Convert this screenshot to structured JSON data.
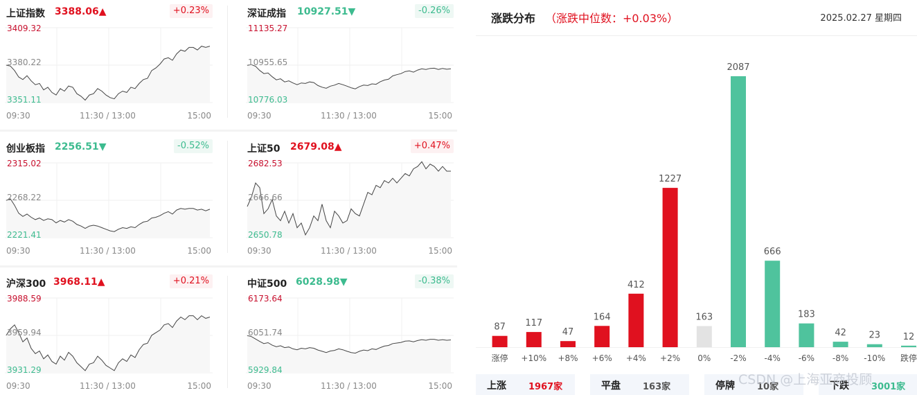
{
  "panels": [
    {
      "name": "上证指数",
      "value": "3388.06",
      "direction": "up",
      "arrow": "▲",
      "change": "+0.23%",
      "high": "3409.32",
      "mid": "3380.22",
      "low": "3351.11",
      "time_start": "09:30",
      "time_mid": "11:30 / 13:00",
      "time_end": "15:00",
      "series": [
        3380.2,
        3379.5,
        3376,
        3371,
        3369,
        3372,
        3368,
        3365,
        3366,
        3361,
        3363,
        3359,
        3357,
        3362,
        3360,
        3364,
        3363,
        3358,
        3356,
        3353,
        3357,
        3358,
        3362,
        3360,
        3357,
        3355,
        3354,
        3358,
        3360,
        3359,
        3363,
        3362,
        3366,
        3369,
        3370,
        3376,
        3378,
        3381,
        3385,
        3386,
        3384,
        3389,
        3392,
        3391,
        3394,
        3394,
        3392,
        3395,
        3394,
        3395
      ]
    },
    {
      "name": "深证成指",
      "value": "10927.51",
      "direction": "down",
      "arrow": "▼",
      "change": "-0.26%",
      "high": "11135.27",
      "mid": "10955.65",
      "low": "10776.03",
      "time_start": "09:30",
      "time_mid": "11:30 / 13:00",
      "time_end": "15:00",
      "series": [
        10955,
        10958,
        10950,
        10930,
        10915,
        10918,
        10900,
        10885,
        10890,
        10875,
        10880,
        10870,
        10862,
        10870,
        10868,
        10875,
        10872,
        10858,
        10850,
        10845,
        10855,
        10860,
        10868,
        10862,
        10855,
        10847,
        10842,
        10853,
        10860,
        10858,
        10866,
        10864,
        10876,
        10884,
        10888,
        10904,
        10910,
        10915,
        10925,
        10928,
        10922,
        10932,
        10938,
        10935,
        10940,
        10941,
        10935,
        10940,
        10936,
        10938
      ]
    },
    {
      "name": "创业板指",
      "value": "2256.51",
      "direction": "down",
      "arrow": "▼",
      "change": "-0.52%",
      "high": "2315.02",
      "mid": "2268.22",
      "low": "2221.41",
      "time_start": "09:30",
      "time_mid": "11:30 / 13:00",
      "time_end": "15:00",
      "series": [
        2268,
        2270,
        2262,
        2252,
        2248,
        2251,
        2247,
        2244,
        2246,
        2243,
        2245,
        2244,
        2240,
        2243,
        2241,
        2244,
        2242,
        2238,
        2236,
        2233,
        2236,
        2237,
        2236,
        2234,
        2232,
        2230,
        2229,
        2232,
        2234,
        2233,
        2235,
        2234,
        2238,
        2241,
        2242,
        2246,
        2247,
        2249,
        2252,
        2254,
        2251,
        2256,
        2258,
        2257,
        2258,
        2258,
        2256,
        2257,
        2255,
        2257
      ]
    },
    {
      "name": "上证50",
      "value": "2679.08",
      "direction": "up",
      "arrow": "▲",
      "change": "+0.47%",
      "high": "2682.53",
      "mid": "2666.66",
      "low": "2650.78",
      "time_start": "09:30",
      "time_mid": "11:30 / 13:00",
      "time_end": "15:00",
      "series": [
        2664,
        2668,
        2674,
        2672,
        2661,
        2663,
        2667,
        2660,
        2658,
        2662,
        2657,
        2661,
        2655,
        2657,
        2652,
        2655,
        2660,
        2658,
        2665,
        2658,
        2655,
        2662,
        2660,
        2657,
        2658,
        2663,
        2661,
        2660,
        2665,
        2670,
        2669,
        2673,
        2672,
        2675,
        2674,
        2676,
        2674,
        2676,
        2678,
        2677,
        2680,
        2681,
        2683,
        2680,
        2682,
        2681,
        2679,
        2681,
        2679,
        2679
      ]
    },
    {
      "name": "沪深300",
      "value": "3968.11",
      "direction": "up",
      "arrow": "▲",
      "change": "+0.21%",
      "high": "3988.59",
      "mid": "3959.94",
      "low": "3931.29",
      "time_start": "09:30",
      "time_mid": "11:30 / 13:00",
      "time_end": "15:00",
      "series": [
        3960,
        3965,
        3968,
        3962,
        3955,
        3958,
        3950,
        3946,
        3948,
        3942,
        3945,
        3940,
        3938,
        3944,
        3941,
        3947,
        3944,
        3939,
        3936,
        3933,
        3938,
        3939,
        3944,
        3941,
        3937,
        3935,
        3933,
        3939,
        3942,
        3940,
        3945,
        3943,
        3949,
        3953,
        3954,
        3960,
        3962,
        3964,
        3968,
        3969,
        3966,
        3971,
        3974,
        3972,
        3975,
        3975,
        3972,
        3975,
        3973,
        3974
      ]
    },
    {
      "name": "中证500",
      "value": "6028.98",
      "direction": "down",
      "arrow": "▼",
      "change": "-0.38%",
      "high": "6173.64",
      "mid": "6051.74",
      "low": "5929.84",
      "time_start": "09:30",
      "time_mid": "11:30 / 13:00",
      "time_end": "15:00",
      "series": [
        6051,
        6048,
        6040,
        6032,
        6025,
        6028,
        6020,
        6015,
        6018,
        6012,
        6014,
        6008,
        6005,
        6010,
        6008,
        6012,
        6010,
        6004,
        6000,
        5996,
        6001,
        6003,
        6008,
        6005,
        6000,
        5996,
        5994,
        6000,
        6004,
        6002,
        6008,
        6006,
        6012,
        6017,
        6019,
        6025,
        6027,
        6029,
        6033,
        6034,
        6031,
        6035,
        6038,
        6036,
        6039,
        6039,
        6036,
        6038,
        6036,
        6037
      ]
    }
  ],
  "distribution": {
    "title": "涨跌分布",
    "subtitle": "（涨跌中位数：+0.03%）",
    "date": "2025.02.27 星期四"
  },
  "chart_data": {
    "type": "bar",
    "categories": [
      "涨停",
      "+10%",
      "+8%",
      "+6%",
      "+4%",
      "+2%",
      "0%",
      "-2%",
      "-4%",
      "-6%",
      "-8%",
      "-10%",
      "跌停"
    ],
    "values": [
      87,
      117,
      47,
      164,
      412,
      1227,
      163,
      2087,
      666,
      183,
      42,
      23,
      12
    ],
    "value_labels": [
      "87",
      "117",
      "47",
      "164",
      "412",
      "1227",
      "163",
      "2087",
      "666",
      "183",
      "42",
      "23",
      "12"
    ],
    "bar_kinds": [
      "up",
      "up",
      "up",
      "up",
      "up",
      "up",
      "flat",
      "down",
      "down",
      "down",
      "down",
      "down",
      "down"
    ],
    "colors": {
      "up": "#e0111f",
      "flat": "#e3e3e3",
      "down": "#4fc39d"
    },
    "title": "涨跌分布",
    "ylim": [
      0,
      2087
    ],
    "grid": false,
    "legend": "none"
  },
  "summary": [
    {
      "label": "上涨",
      "value": "1967家",
      "kind": "up"
    },
    {
      "label": "平盘",
      "value": "163家",
      "kind": "flat"
    },
    {
      "label": "停牌",
      "value": "10家",
      "kind": "flat"
    },
    {
      "label": "下跌",
      "value": "3001家",
      "kind": "down"
    }
  ],
  "watermark": "CSDN @上海亚商投顾"
}
